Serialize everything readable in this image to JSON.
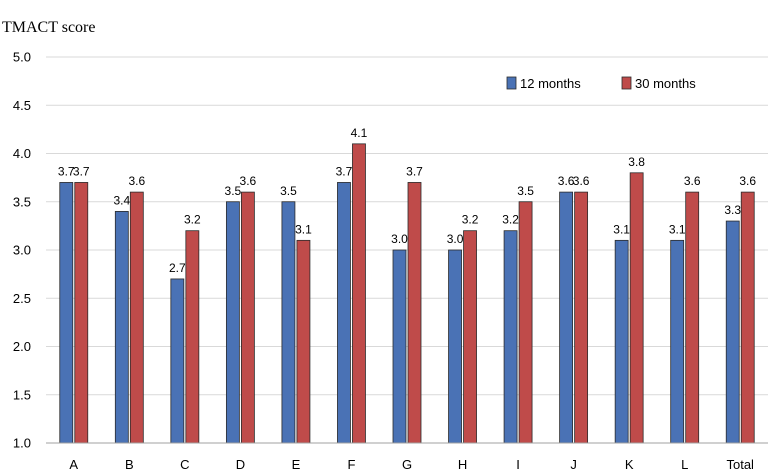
{
  "chart_data": {
    "type": "bar",
    "ylabel": "TMACT score",
    "xlabel": "",
    "categories": [
      "A",
      "B",
      "C",
      "D",
      "E",
      "F",
      "G",
      "H",
      "I",
      "J",
      "K",
      "L",
      "Total"
    ],
    "series": [
      {
        "name": "12 months",
        "color": "#4a72b5",
        "values": [
          3.7,
          3.4,
          2.7,
          3.5,
          3.5,
          3.7,
          3.0,
          3.0,
          3.2,
          3.6,
          3.1,
          3.1,
          3.3
        ],
        "labels": [
          "3.7",
          "3.4",
          "2.7",
          "3.5",
          "3.5",
          "3.7",
          "3.0",
          "3.0",
          "3.2",
          "3.6",
          "3.1",
          "3.1",
          "3.3"
        ]
      },
      {
        "name": "30 months",
        "color": "#bf4b4a",
        "values": [
          3.7,
          3.6,
          3.2,
          3.6,
          3.1,
          4.1,
          3.7,
          3.2,
          3.5,
          3.6,
          3.8,
          3.6,
          3.6
        ],
        "labels": [
          "3.7",
          "3.6",
          "3.2",
          "3.6",
          "3.1",
          "4.1",
          "3.7",
          "3.2",
          "3.5",
          "3.6",
          "3.8",
          "3.6",
          "3.6"
        ]
      }
    ],
    "ylim": [
      1.0,
      5.0
    ],
    "yticks": [
      "1.0",
      "1.5",
      "2.0",
      "2.5",
      "3.0",
      "3.5",
      "4.0",
      "4.5",
      "5.0"
    ],
    "grid": true,
    "legend_position": "top-right"
  }
}
